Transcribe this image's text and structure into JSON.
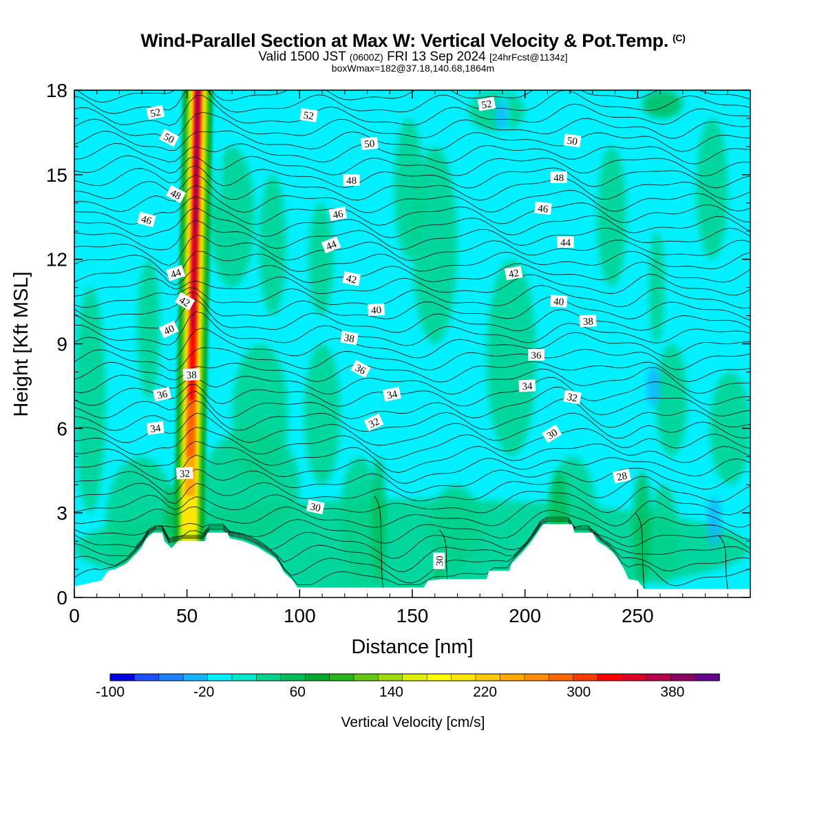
{
  "header": {
    "title": "Wind-Parallel Section at Max W: Vertical Velocity & Pot.Temp.",
    "title_mark": "(C)",
    "valid_prefix": "Valid 1500 JST",
    "valid_utc": "(0600Z)",
    "valid_date": "FRI 13 Sep 2024",
    "forecast": "[24hrFcst@1134z]",
    "box_info": "boxWmax=182@37.18,140.68,1864m"
  },
  "chart_data": {
    "type": "heatmap",
    "subtype": "vertical cross-section (filled vertical velocity + potential temperature contours)",
    "xlabel": "Distance [nm]",
    "ylabel": "Height [Kft MSL]",
    "xlim": [
      0,
      300
    ],
    "ylim": [
      0,
      18
    ],
    "x_ticks": [
      0,
      50,
      100,
      150,
      200,
      250
    ],
    "y_ticks": [
      0,
      3,
      6,
      9,
      12,
      15,
      18
    ],
    "colorbar": {
      "title": "Vertical Velocity [cm/s]",
      "min": -100,
      "max": 420,
      "step": 20,
      "tick_labels": [
        -100,
        -20,
        60,
        140,
        220,
        300,
        380
      ],
      "colors": [
        "#0000e6",
        "#1e50ff",
        "#1e82ff",
        "#14b4ff",
        "#00f0ff",
        "#00e6c8",
        "#00d28c",
        "#00be5a",
        "#00aa32",
        "#28b41e",
        "#64c814",
        "#a0dc0a",
        "#dcf000",
        "#ffff00",
        "#ffe600",
        "#ffc800",
        "#ffaa00",
        "#ff8c00",
        "#ff6400",
        "#ff3c00",
        "#ff0000",
        "#dc0028",
        "#b4004b",
        "#8c0064",
        "#64008c"
      ]
    },
    "max_updraft": {
      "x_nm": 52,
      "value_cm_s": 400
    },
    "terrain": [
      {
        "x": 0,
        "h": 0.4
      },
      {
        "x": 12,
        "h": 0.6
      },
      {
        "x": 15,
        "h": 0.95
      },
      {
        "x": 18,
        "h": 1.0
      },
      {
        "x": 23,
        "h": 1.2
      },
      {
        "x": 28,
        "h": 1.6
      },
      {
        "x": 30,
        "h": 1.8
      },
      {
        "x": 32,
        "h": 2.1
      },
      {
        "x": 35,
        "h": 2.3
      },
      {
        "x": 39,
        "h": 2.3
      },
      {
        "x": 40,
        "h": 2.0
      },
      {
        "x": 43,
        "h": 1.75
      },
      {
        "x": 46,
        "h": 2.0
      },
      {
        "x": 58,
        "h": 2.0
      },
      {
        "x": 59,
        "h": 2.3
      },
      {
        "x": 68,
        "h": 2.3
      },
      {
        "x": 69,
        "h": 2.1
      },
      {
        "x": 75,
        "h": 2.0
      },
      {
        "x": 81,
        "h": 1.8
      },
      {
        "x": 85,
        "h": 1.6
      },
      {
        "x": 89,
        "h": 1.4
      },
      {
        "x": 91,
        "h": 1.2
      },
      {
        "x": 93,
        "h": 0.9
      },
      {
        "x": 97,
        "h": 0.6
      },
      {
        "x": 99,
        "h": 0.35
      },
      {
        "x": 155,
        "h": 0.35
      },
      {
        "x": 157,
        "h": 0.6
      },
      {
        "x": 163,
        "h": 0.65
      },
      {
        "x": 183,
        "h": 0.65
      },
      {
        "x": 184,
        "h": 0.95
      },
      {
        "x": 193,
        "h": 0.95
      },
      {
        "x": 194,
        "h": 1.2
      },
      {
        "x": 197,
        "h": 1.45
      },
      {
        "x": 200,
        "h": 1.7
      },
      {
        "x": 203,
        "h": 2.0
      },
      {
        "x": 206,
        "h": 2.35
      },
      {
        "x": 208,
        "h": 2.6
      },
      {
        "x": 221,
        "h": 2.6
      },
      {
        "x": 222,
        "h": 2.3
      },
      {
        "x": 230,
        "h": 2.3
      },
      {
        "x": 232,
        "h": 2.0
      },
      {
        "x": 236,
        "h": 1.8
      },
      {
        "x": 239,
        "h": 1.6
      },
      {
        "x": 241,
        "h": 1.4
      },
      {
        "x": 244,
        "h": 1.0
      },
      {
        "x": 246,
        "h": 0.65
      },
      {
        "x": 250,
        "h": 0.6
      },
      {
        "x": 253,
        "h": 0.3
      },
      {
        "x": 300,
        "h": 0.3
      }
    ],
    "contour_labels": [
      {
        "text": "52",
        "x": 36,
        "y": 17.2,
        "rot": -12
      },
      {
        "text": "52",
        "x": 104,
        "y": 17.1,
        "rot": 8
      },
      {
        "text": "52",
        "x": 183,
        "y": 17.5,
        "rot": -10
      },
      {
        "text": "50",
        "x": 42,
        "y": 16.3,
        "rot": 28
      },
      {
        "text": "50",
        "x": 131,
        "y": 16.1,
        "rot": -5
      },
      {
        "text": "50",
        "x": 221,
        "y": 16.2,
        "rot": 8
      },
      {
        "text": "48",
        "x": 45,
        "y": 14.3,
        "rot": 28
      },
      {
        "text": "48",
        "x": 123,
        "y": 14.8,
        "rot": 0
      },
      {
        "text": "48",
        "x": 215,
        "y": 14.9,
        "rot": 0
      },
      {
        "text": "46",
        "x": 32,
        "y": 13.4,
        "rot": 15
      },
      {
        "text": "46",
        "x": 117,
        "y": 13.6,
        "rot": -10
      },
      {
        "text": "46",
        "x": 208,
        "y": 13.8,
        "rot": 6
      },
      {
        "text": "44",
        "x": 45,
        "y": 11.5,
        "rot": -18
      },
      {
        "text": "44",
        "x": 114,
        "y": 12.5,
        "rot": -22
      },
      {
        "text": "44",
        "x": 218,
        "y": 12.6,
        "rot": 0
      },
      {
        "text": "42",
        "x": 49,
        "y": 10.5,
        "rot": 30
      },
      {
        "text": "42",
        "x": 123,
        "y": 11.3,
        "rot": 12
      },
      {
        "text": "42",
        "x": 195,
        "y": 11.5,
        "rot": -10
      },
      {
        "text": "40",
        "x": 42,
        "y": 9.5,
        "rot": -25
      },
      {
        "text": "40",
        "x": 134,
        "y": 10.2,
        "rot": -3
      },
      {
        "text": "40",
        "x": 215,
        "y": 10.5,
        "rot": 4
      },
      {
        "text": "38",
        "x": 52,
        "y": 7.9,
        "rot": -3
      },
      {
        "text": "38",
        "x": 122,
        "y": 9.2,
        "rot": 10
      },
      {
        "text": "38",
        "x": 228,
        "y": 9.8,
        "rot": -3
      },
      {
        "text": "36",
        "x": 39,
        "y": 7.2,
        "rot": -12
      },
      {
        "text": "36",
        "x": 127,
        "y": 8.1,
        "rot": 28
      },
      {
        "text": "36",
        "x": 205,
        "y": 8.6,
        "rot": 0
      },
      {
        "text": "34",
        "x": 36,
        "y": 6.0,
        "rot": -8
      },
      {
        "text": "34",
        "x": 141,
        "y": 7.2,
        "rot": -12
      },
      {
        "text": "34",
        "x": 201,
        "y": 7.5,
        "rot": -3
      },
      {
        "text": "32",
        "x": 49,
        "y": 4.4,
        "rot": -3
      },
      {
        "text": "32",
        "x": 133,
        "y": 6.2,
        "rot": -25
      },
      {
        "text": "32",
        "x": 221,
        "y": 7.1,
        "rot": 10
      },
      {
        "text": "30",
        "x": 107,
        "y": 3.2,
        "rot": 12
      },
      {
        "text": "30",
        "x": 162,
        "y": 1.3,
        "rot": -90
      },
      {
        "text": "30",
        "x": 212,
        "y": 5.8,
        "rot": -32
      },
      {
        "text": "28",
        "x": 243,
        "y": 4.3,
        "rot": -12
      }
    ]
  }
}
